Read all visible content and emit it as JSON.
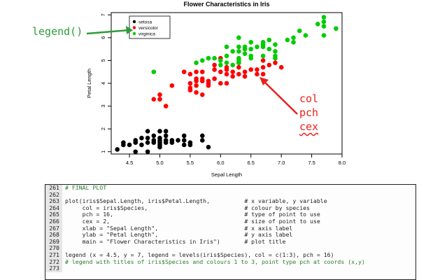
{
  "chart_data": {
    "type": "scatter",
    "title": "Flower Characteristics in Iris",
    "xlabel": "Sepal Length",
    "ylabel": "Petal Length",
    "xlim": [
      4.2,
      8.0
    ],
    "ylim": [
      0.9,
      7.1
    ],
    "xticks": [
      "4.5",
      "5.0",
      "5.5",
      "6.0",
      "6.5",
      "7.0",
      "7.5",
      "8.0"
    ],
    "yticks": [
      "1",
      "2",
      "3",
      "4",
      "5",
      "6",
      "7"
    ],
    "legend": {
      "position": "top-left",
      "entries": [
        "setosa",
        "versicolor",
        "virginica"
      ]
    },
    "series": [
      {
        "name": "setosa",
        "color": "#000000",
        "points": [
          [
            4.3,
            1.1
          ],
          [
            4.4,
            1.3
          ],
          [
            4.4,
            1.4
          ],
          [
            4.5,
            1.3
          ],
          [
            4.6,
            1.4
          ],
          [
            4.6,
            1.5
          ],
          [
            4.6,
            1.0
          ],
          [
            4.7,
            1.3
          ],
          [
            4.7,
            1.6
          ],
          [
            4.8,
            1.4
          ],
          [
            4.8,
            1.6
          ],
          [
            4.8,
            1.9
          ],
          [
            4.9,
            1.4
          ],
          [
            4.9,
            1.5
          ],
          [
            5.0,
            1.2
          ],
          [
            5.0,
            1.3
          ],
          [
            5.0,
            1.4
          ],
          [
            5.0,
            1.5
          ],
          [
            5.0,
            1.6
          ],
          [
            5.1,
            1.4
          ],
          [
            5.1,
            1.5
          ],
          [
            5.1,
            1.7
          ],
          [
            5.1,
            1.9
          ],
          [
            5.2,
            1.4
          ],
          [
            5.2,
            1.5
          ],
          [
            5.3,
            1.5
          ],
          [
            5.4,
            1.3
          ],
          [
            5.4,
            1.5
          ],
          [
            5.4,
            1.7
          ],
          [
            5.5,
            1.3
          ],
          [
            5.5,
            1.4
          ],
          [
            5.7,
            1.5
          ],
          [
            5.7,
            1.7
          ],
          [
            5.8,
            1.2
          ],
          [
            4.8,
            1.0
          ],
          [
            5.0,
            1.9
          ],
          [
            4.9,
            1.7
          ]
        ]
      },
      {
        "name": "versicolor",
        "color": "#ff0000",
        "points": [
          [
            4.9,
            3.3
          ],
          [
            5.0,
            3.3
          ],
          [
            5.0,
            3.5
          ],
          [
            5.1,
            3.0
          ],
          [
            5.2,
            3.9
          ],
          [
            5.4,
            4.5
          ],
          [
            5.5,
            3.7
          ],
          [
            5.5,
            3.8
          ],
          [
            5.5,
            4.0
          ],
          [
            5.5,
            4.4
          ],
          [
            5.6,
            3.6
          ],
          [
            5.6,
            3.9
          ],
          [
            5.6,
            4.1
          ],
          [
            5.6,
            4.2
          ],
          [
            5.6,
            4.5
          ],
          [
            5.7,
            3.5
          ],
          [
            5.7,
            4.1
          ],
          [
            5.7,
            4.2
          ],
          [
            5.7,
            4.5
          ],
          [
            5.8,
            3.9
          ],
          [
            5.8,
            4.0
          ],
          [
            5.8,
            4.1
          ],
          [
            5.9,
            4.2
          ],
          [
            5.9,
            4.8
          ],
          [
            6.0,
            4.0
          ],
          [
            6.0,
            4.5
          ],
          [
            6.0,
            5.1
          ],
          [
            6.1,
            4.0
          ],
          [
            6.1,
            4.6
          ],
          [
            6.1,
            4.7
          ],
          [
            6.2,
            4.3
          ],
          [
            6.2,
            4.5
          ],
          [
            6.3,
            4.4
          ],
          [
            6.3,
            4.7
          ],
          [
            6.3,
            4.9
          ],
          [
            6.4,
            4.3
          ],
          [
            6.4,
            4.5
          ],
          [
            6.5,
            4.6
          ],
          [
            6.6,
            4.4
          ],
          [
            6.6,
            4.6
          ],
          [
            6.7,
            4.4
          ],
          [
            6.7,
            4.7
          ],
          [
            6.7,
            5.0
          ],
          [
            6.8,
            4.8
          ],
          [
            6.9,
            4.9
          ],
          [
            7.0,
            4.7
          ],
          [
            6.1,
            4.4
          ],
          [
            5.9,
            4.6
          ]
        ]
      },
      {
        "name": "virginica",
        "color": "#00cc00",
        "points": [
          [
            4.9,
            4.5
          ],
          [
            5.6,
            4.9
          ],
          [
            5.7,
            5.0
          ],
          [
            5.8,
            5.1
          ],
          [
            5.8,
            5.1
          ],
          [
            5.9,
            5.1
          ],
          [
            6.0,
            4.8
          ],
          [
            6.0,
            5.0
          ],
          [
            6.1,
            4.9
          ],
          [
            6.1,
            5.6
          ],
          [
            6.2,
            4.8
          ],
          [
            6.2,
            5.4
          ],
          [
            6.3,
            4.9
          ],
          [
            6.3,
            5.0
          ],
          [
            6.3,
            5.1
          ],
          [
            6.3,
            5.6
          ],
          [
            6.3,
            6.0
          ],
          [
            6.4,
            5.3
          ],
          [
            6.4,
            5.5
          ],
          [
            6.4,
            5.6
          ],
          [
            6.5,
            5.1
          ],
          [
            6.5,
            5.2
          ],
          [
            6.5,
            5.5
          ],
          [
            6.5,
            5.8
          ],
          [
            6.7,
            5.2
          ],
          [
            6.7,
            5.6
          ],
          [
            6.7,
            5.7
          ],
          [
            6.7,
            5.8
          ],
          [
            6.8,
            5.5
          ],
          [
            6.8,
            5.9
          ],
          [
            6.9,
            5.1
          ],
          [
            6.9,
            5.4
          ],
          [
            6.9,
            5.7
          ],
          [
            7.1,
            5.9
          ],
          [
            7.2,
            5.8
          ],
          [
            7.2,
            6.0
          ],
          [
            7.3,
            6.3
          ],
          [
            7.4,
            6.1
          ],
          [
            7.6,
            6.6
          ],
          [
            7.7,
            6.1
          ],
          [
            7.7,
            6.7
          ],
          [
            7.7,
            6.9
          ],
          [
            7.9,
            6.4
          ],
          [
            6.6,
            5.6
          ],
          [
            6.3,
            5.4
          ],
          [
            6.1,
            5.2
          ],
          [
            6.9,
            5.2
          ],
          [
            7.7,
            6.5
          ]
        ]
      }
    ]
  },
  "annotations": {
    "legend_call": "legend()",
    "col": "col",
    "pch": "pch",
    "cex": "cex"
  },
  "code": [
    {
      "num": "261",
      "text": "# FINAL PLOT",
      "comment": true
    },
    {
      "num": "262",
      "text": ""
    },
    {
      "num": "263",
      "text": "plot(iris$Sepal.Length, iris$Petal.Length,          # x variable, y variable"
    },
    {
      "num": "264",
      "text": "     col = iris$Species,                            # colour by species"
    },
    {
      "num": "265",
      "text": "     pch = 16,                                      # type of point to use"
    },
    {
      "num": "266",
      "text": "     cex = 2,                                       # size of point to use"
    },
    {
      "num": "267",
      "text": "     xlab = \"Sepal Length\",                         # x axis label"
    },
    {
      "num": "268",
      "text": "     ylab = \"Petal Length\",                         # y axis label"
    },
    {
      "num": "269",
      "text": "     main = \"Flower Characteristics in Iris\")       # plot title"
    },
    {
      "num": "270",
      "text": ""
    },
    {
      "num": "271",
      "text": "legend (x = 4.5, y = 7, legend = levels(iris$Species), col = c(1:3), pch = 16)"
    },
    {
      "num": "272",
      "text": "# legend with titles of iris$Species and colours 1 to 3, point type pch at coords (x,y)",
      "comment": true
    },
    {
      "num": "273",
      "text": ""
    }
  ]
}
